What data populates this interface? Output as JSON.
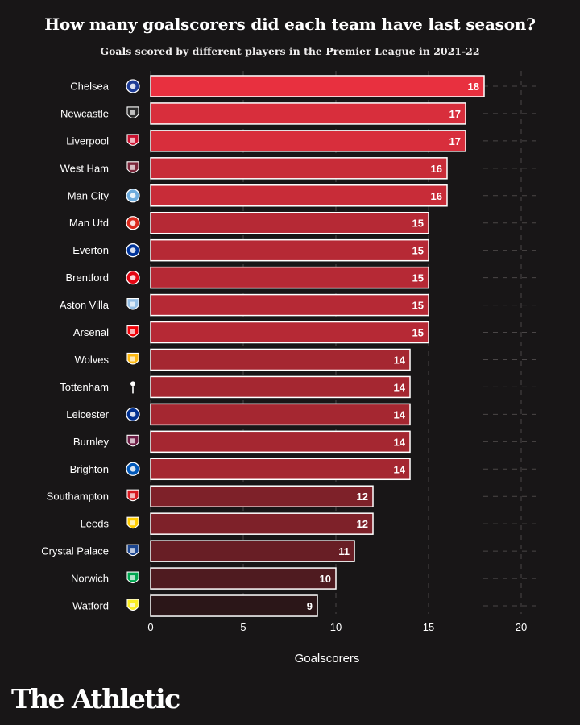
{
  "title": "How many goalscorers did each team have last season?",
  "subtitle": "Goals scored by different players in the Premier League in 2021-22",
  "brand": "The Athletic",
  "chart_data": {
    "type": "bar",
    "orientation": "horizontal",
    "title": "How many goalscorers did each team have last season?",
    "subtitle": "Goals scored by different players in the Premier League in 2021-22",
    "xlabel": "Goalscorers",
    "ylabel": "",
    "xlim": [
      0,
      20
    ],
    "xticks": [
      0,
      5,
      10,
      15,
      20
    ],
    "grid": "vertical dashed",
    "categories": [
      "Chelsea",
      "Newcastle",
      "Liverpool",
      "West Ham",
      "Man City",
      "Man Utd",
      "Everton",
      "Brentford",
      "Aston Villa",
      "Arsenal",
      "Wolves",
      "Tottenham",
      "Leicester",
      "Burnley",
      "Brighton",
      "Southampton",
      "Leeds",
      "Crystal Palace",
      "Norwich",
      "Watford"
    ],
    "values": [
      18,
      17,
      17,
      16,
      16,
      15,
      15,
      15,
      15,
      15,
      14,
      14,
      14,
      14,
      14,
      12,
      12,
      11,
      10,
      9
    ],
    "badges": [
      {
        "icon": "chelsea-badge-icon",
        "color": "#1d3c96"
      },
      {
        "icon": "newcastle-badge-icon",
        "color": "#2a2a2a"
      },
      {
        "icon": "liverpool-badge-icon",
        "color": "#c8102e"
      },
      {
        "icon": "west-ham-badge-icon",
        "color": "#7a263a"
      },
      {
        "icon": "man-city-badge-icon",
        "color": "#6cabdd"
      },
      {
        "icon": "man-utd-badge-icon",
        "color": "#da291c"
      },
      {
        "icon": "everton-badge-icon",
        "color": "#003399"
      },
      {
        "icon": "brentford-badge-icon",
        "color": "#e30613"
      },
      {
        "icon": "aston-villa-badge-icon",
        "color": "#95bfe5"
      },
      {
        "icon": "arsenal-badge-icon",
        "color": "#ef0107"
      },
      {
        "icon": "wolves-badge-icon",
        "color": "#fdb913"
      },
      {
        "icon": "tottenham-badge-icon",
        "color": "#ffffff"
      },
      {
        "icon": "leicester-badge-icon",
        "color": "#003090"
      },
      {
        "icon": "burnley-badge-icon",
        "color": "#6c1d45"
      },
      {
        "icon": "brighton-badge-icon",
        "color": "#0057b8"
      },
      {
        "icon": "southampton-badge-icon",
        "color": "#d71920"
      },
      {
        "icon": "leeds-badge-icon",
        "color": "#ffcd00"
      },
      {
        "icon": "crystal-palace-badge-icon",
        "color": "#1b458f"
      },
      {
        "icon": "norwich-badge-icon",
        "color": "#00a650"
      },
      {
        "icon": "watford-badge-icon",
        "color": "#fbee23"
      }
    ],
    "colors": {
      "background": "#181617",
      "bar_max": "#e8303f",
      "bar_min": "#2b1618",
      "bar_border": "#ffffff",
      "grid": "#4a4647"
    }
  }
}
